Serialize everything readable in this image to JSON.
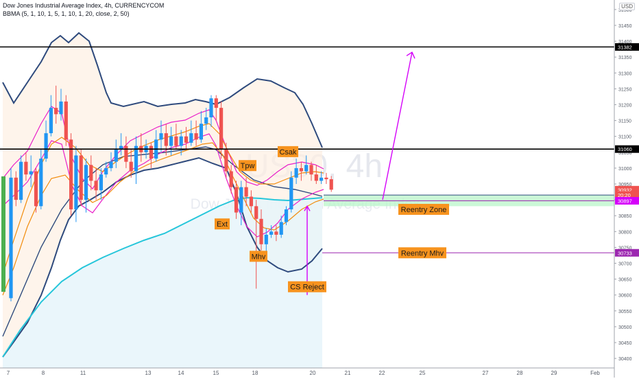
{
  "header": {
    "symbol_line": "Dow Jones Industrial Average Index, 4h, CURRENCYCOM",
    "indicator_line": "BBMA (5, 1, 10, 1, 5, 1, 10, 1, 20, close, 2, 50)",
    "currency": "USD"
  },
  "watermark": {
    "ticker": "US30, 4h",
    "name": "Dow Jones Industrial Average Index"
  },
  "chart_data": {
    "type": "candlestick",
    "x_ticks": [
      "7",
      "8",
      "11",
      "13",
      "14",
      "15",
      "18",
      "20",
      "21",
      "22",
      "25",
      "27",
      "28",
      "29",
      "Feb"
    ],
    "y_ticks": [
      30400,
      30450,
      30500,
      30550,
      30600,
      30650,
      30700,
      30750,
      30800,
      30850,
      30900,
      30950,
      31000,
      31050,
      31100,
      31150,
      31200,
      31250,
      31300,
      31350,
      31400,
      31450,
      31500
    ],
    "ylim": [
      30370,
      31530
    ],
    "candles": [
      [
        30590,
        30970,
        31000,
        30580
      ],
      [
        30970,
        30900,
        30990,
        30880
      ],
      [
        30900,
        31020,
        31040,
        30890
      ],
      [
        31020,
        30980,
        31050,
        30960
      ],
      [
        30980,
        30990,
        31040,
        30940
      ],
      [
        30990,
        30880,
        31000,
        30860
      ],
      [
        30880,
        31030,
        31060,
        30870
      ],
      [
        31030,
        31110,
        31150,
        31020
      ],
      [
        31110,
        31190,
        31230,
        31100
      ],
      [
        31190,
        31170,
        31260,
        31140
      ],
      [
        31170,
        31210,
        31250,
        31150
      ],
      [
        31210,
        31090,
        31230,
        31070
      ],
      [
        31090,
        30870,
        31110,
        30850
      ],
      [
        30870,
        31040,
        31070,
        30830
      ],
      [
        31040,
        30900,
        31060,
        30880
      ],
      [
        30900,
        31010,
        31030,
        30860
      ],
      [
        31010,
        30960,
        31040,
        30930
      ],
      [
        30960,
        30930,
        31000,
        30900
      ],
      [
        30930,
        30980,
        31000,
        30900
      ],
      [
        30980,
        31000,
        31020,
        30970
      ],
      [
        31000,
        31020,
        31050,
        30990
      ],
      [
        31020,
        31060,
        31090,
        31000
      ],
      [
        31060,
        31070,
        31110,
        31040
      ],
      [
        31070,
        31020,
        31100,
        31000
      ],
      [
        31020,
        30990,
        31060,
        30970
      ],
      [
        30990,
        31070,
        31100,
        30950
      ],
      [
        31070,
        31050,
        31110,
        31020
      ],
      [
        31050,
        31070,
        31090,
        31030
      ],
      [
        31070,
        31030,
        31080,
        31000
      ],
      [
        31030,
        31090,
        31120,
        31020
      ],
      [
        31090,
        31110,
        31150,
        31050
      ],
      [
        31110,
        31070,
        31140,
        31040
      ],
      [
        31070,
        31100,
        31130,
        31040
      ],
      [
        31100,
        31070,
        31140,
        31060
      ],
      [
        31070,
        31100,
        31120,
        31040
      ],
      [
        31100,
        31080,
        31130,
        31060
      ],
      [
        31080,
        31110,
        31150,
        31070
      ],
      [
        31110,
        31090,
        31150,
        31070
      ],
      [
        31090,
        31140,
        31180,
        31080
      ],
      [
        31140,
        31160,
        31190,
        31120
      ],
      [
        31160,
        31220,
        31230,
        31130
      ],
      [
        31220,
        31190,
        31230,
        31150
      ],
      [
        31190,
        31060,
        31210,
        31030
      ],
      [
        31060,
        30990,
        31080,
        30970
      ],
      [
        30990,
        30940,
        31010,
        30920
      ],
      [
        30940,
        30860,
        30960,
        30840
      ],
      [
        30860,
        30940,
        30960,
        30820
      ],
      [
        30940,
        30910,
        30970,
        30880
      ],
      [
        30910,
        30880,
        30930,
        30860
      ],
      [
        30880,
        30840,
        30900,
        30620
      ],
      [
        30840,
        30760,
        30870,
        30740
      ],
      [
        30760,
        30790,
        30810,
        30730
      ],
      [
        30790,
        30800,
        30820,
        30780
      ],
      [
        30800,
        30790,
        30820,
        30770
      ],
      [
        30790,
        30830,
        30850,
        30780
      ],
      [
        30830,
        30870,
        30880,
        30820
      ],
      [
        30870,
        30970,
        30990,
        30860
      ],
      [
        30970,
        31000,
        31030,
        30950
      ],
      [
        31000,
        30990,
        31020,
        30960
      ],
      [
        30990,
        31010,
        31040,
        30980
      ],
      [
        31010,
        30980,
        31020,
        30960
      ],
      [
        30980,
        30960,
        31010,
        30950
      ],
      [
        30960,
        30970,
        30990,
        30950
      ],
      [
        30970,
        30965,
        30985,
        30950
      ],
      [
        30965,
        30932,
        30975,
        30925
      ]
    ],
    "price_lines": [
      31382,
      31060
    ],
    "axis_tags": [
      {
        "value": 31382,
        "label": "31382",
        "color": "#000000"
      },
      {
        "value": 31060,
        "label": "31060",
        "color": "#000000"
      },
      {
        "value": 30932,
        "label": "30932",
        "color": "#ef5350"
      },
      {
        "value": 30915,
        "label": "20:20",
        "color": "#ef5350"
      },
      {
        "value": 30897,
        "label": "30897",
        "color": "#d500f9"
      },
      {
        "value": 30733,
        "label": "30733",
        "color": "#9c27b0"
      }
    ],
    "annotations": [
      {
        "text": "Tpw"
      },
      {
        "text": "Csak"
      },
      {
        "text": "Ext"
      },
      {
        "text": "Mhv"
      },
      {
        "text": "CS Reject"
      },
      {
        "text": "Reentry Zone"
      },
      {
        "text": "Reentry Mhv"
      }
    ],
    "reentry_zone": [
      30880,
      30915
    ],
    "reentry_mhv": 30733,
    "colors": {
      "up": "#2196f3",
      "down": "#ef5350",
      "bb": "#2e4a7d",
      "ma_pink": "#e91ec9",
      "ma_orange": "#f28c0c",
      "ema50": "#26c6da",
      "projection": "#d500f9",
      "label_bg": "#f7931e"
    }
  }
}
